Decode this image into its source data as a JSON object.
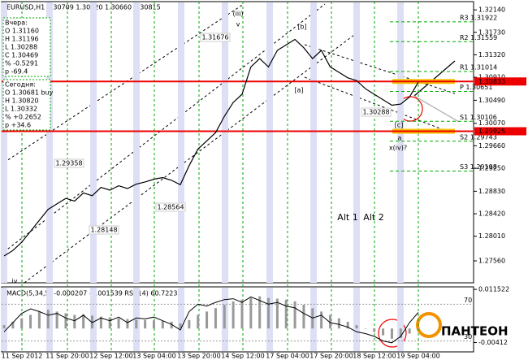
{
  "chart_data": {
    "type": "line",
    "title": "EURUSD,H1  1.30709 1.30820 1.30660 1.30815",
    "series": [
      {
        "name": "EURUSD",
        "color": "#000000",
        "values": [
          1.2765,
          1.2775,
          1.279,
          1.281,
          1.283,
          1.285,
          1.286,
          1.287,
          1.2865,
          1.288,
          1.2875,
          1.289,
          1.2885,
          1.2893,
          1.2888,
          1.2896,
          1.29,
          1.2905,
          1.2908,
          1.2903,
          1.2895,
          1.293,
          1.296,
          1.2975,
          1.299,
          1.302,
          1.3045,
          1.306,
          1.311,
          1.3125,
          1.311,
          1.314,
          1.315,
          1.316,
          1.3145,
          1.3125,
          1.314,
          1.311,
          1.31,
          1.309,
          1.3085,
          1.307,
          1.306,
          1.305,
          1.304,
          1.3042,
          1.3055,
          1.3082
        ]
      }
    ],
    "ylim": [
      1.2716,
      1.3229
    ],
    "yticks": [
      {
        "value": 1.3214,
        "label": "1.32140"
      },
      {
        "value": 1.3173,
        "label": "1.31730"
      },
      {
        "value": 1.3132,
        "label": "1.31320"
      },
      {
        "value": 1.3091,
        "label": "1.30910"
      },
      {
        "value": 1.3049,
        "label": "1.30490"
      },
      {
        "value": 1.3007,
        "label": "1.30070"
      },
      {
        "value": 1.2966,
        "label": "1.29660"
      },
      {
        "value": 1.2925,
        "label": "1.29250"
      },
      {
        "value": 1.2883,
        "label": "1.28830"
      },
      {
        "value": 1.2842,
        "label": "1.28420"
      },
      {
        "value": 1.2801,
        "label": "1.28010"
      },
      {
        "value": 1.2756,
        "label": "1.27560"
      }
    ],
    "xticks": [
      "11 Sep 2012",
      "11 Sep 20:00",
      "12 Sep 12:00",
      "13 Sep 04:00",
      "13 Sep 20:00",
      "14 Sep 12:00",
      "17 Sep 04:00",
      "17 Sep 20:00",
      "18 Sep 12:00",
      "19 Sep 04:00"
    ],
    "levels": [
      {
        "value": 1.30833,
        "label": "1.30833"
      },
      {
        "value": 1.29925,
        "label": "1.29925"
      }
    ],
    "pivots": [
      {
        "value": 1.31922,
        "label": "R3 1.31922"
      },
      {
        "value": 1.31559,
        "label": "R2 1.31559"
      },
      {
        "value": 1.31014,
        "label": "R1 1.31014"
      },
      {
        "value": 1.30651,
        "label": "P 1.30651"
      },
      {
        "value": 1.30106,
        "label": "S1 1.30106"
      },
      {
        "value": 1.29743,
        "label": "S2 1.29743"
      },
      {
        "value": 1.29198,
        "label": "S3 1.29198"
      }
    ],
    "yesterday": [
      "Вчера:",
      "O 1.31160",
      "H 1.31196",
      "L 1.30288",
      "C 1.30469",
      "% -0.5291",
      "p -69.4"
    ],
    "today": [
      "Сегодня:",
      "O 1.30681 buy",
      "H 1.30820",
      "L 1.30332",
      "% +0.2652",
      "p +34.6"
    ],
    "waves": [
      "(iii)",
      "v",
      "[b]",
      "[a]",
      "[c]",
      "a",
      "x(iv)?",
      "iv",
      "Alt 1",
      "Alt 2"
    ],
    "price_tags": [
      "1.31676",
      "1.29358",
      "1.28564",
      "1.28148",
      "1.30288"
    ],
    "macd": {
      "title": "MACD(5,34,5) -0.000207 -0.001539  RSI(14) 60.7223",
      "values": [
        0.001,
        0.002,
        0.003,
        0.004,
        0.005,
        0.0055,
        0.005,
        0.0045,
        0.004,
        0.0042,
        0.0038,
        0.0035,
        0.0033,
        0.003,
        0.0028,
        0.0026,
        0.0025,
        0.0024,
        0.0022,
        0.002,
        0.0015,
        0.0025,
        0.004,
        0.005,
        0.006,
        0.007,
        0.008,
        0.0085,
        0.009,
        0.0095,
        0.009,
        0.0088,
        0.0085,
        0.008,
        0.007,
        0.006,
        0.005,
        0.004,
        0.003,
        0.002,
        0.001,
        0,
        -0.001,
        -0.002,
        -0.003,
        -0.0028,
        -0.0015,
        -0.0002
      ],
      "ylim": [
        -0.00664,
        0.01203
      ],
      "yticks": [
        0.011522,
        -0.00412
      ],
      "rsi": [
        40,
        50,
        60,
        65,
        62,
        58,
        60,
        55,
        52,
        58,
        50,
        55,
        52,
        56,
        50,
        55,
        54,
        56,
        52,
        48,
        42,
        62,
        70,
        68,
        72,
        75,
        76,
        72,
        78,
        74,
        70,
        72,
        68,
        66,
        60,
        55,
        58,
        50,
        48,
        45,
        40,
        38,
        35,
        30,
        28,
        35,
        50,
        61
      ],
      "rsi_ylim": [
        19,
        88
      ],
      "rsi_ticks": [
        70,
        30
      ]
    },
    "logo": "ПАНТЕОН"
  }
}
